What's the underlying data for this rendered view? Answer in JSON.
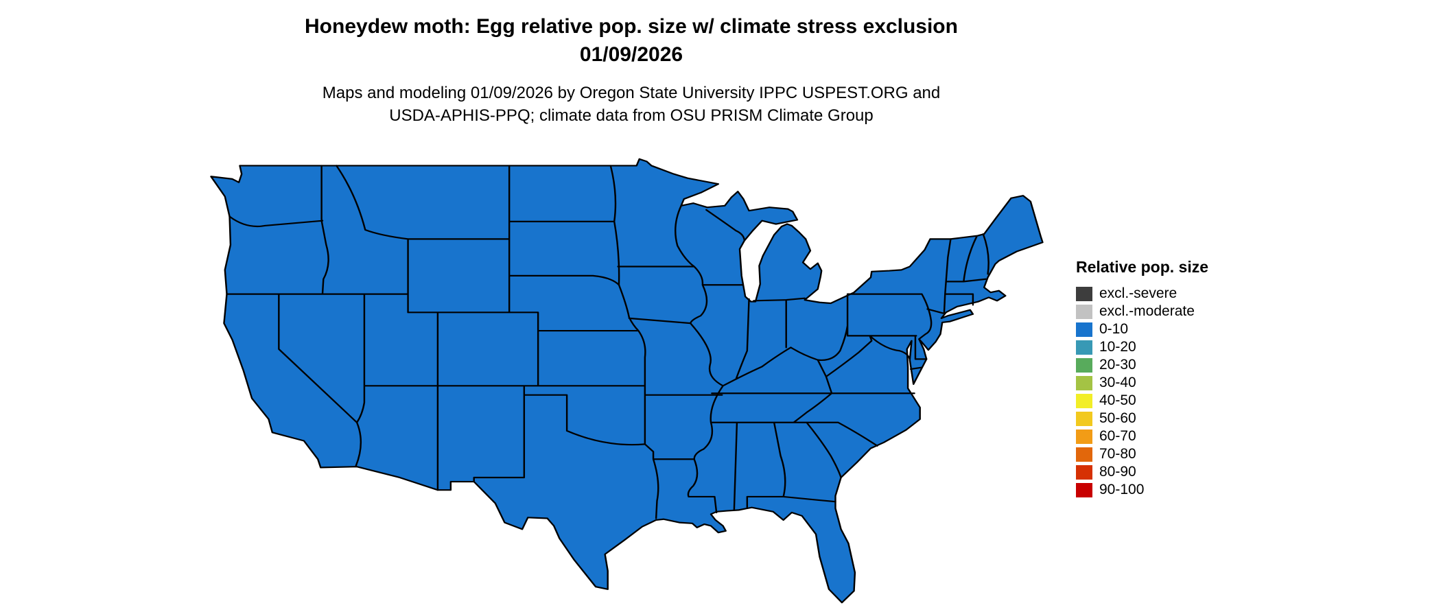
{
  "header": {
    "title_line1": "Honeydew moth: Egg relative pop. size w/ climate stress exclusion",
    "title_line2": "01/09/2026",
    "subtitle_line1": "Maps and modeling 01/09/2026 by Oregon State University IPPC USPEST.ORG and",
    "subtitle_line2": "USDA-APHIS-PPQ; climate data from OSU PRISM Climate Group"
  },
  "map": {
    "uniform_class": "0-10",
    "fill_color": "#1874cd",
    "border_color": "#000000"
  },
  "legend": {
    "title": "Relative pop. size",
    "items": [
      {
        "label": "excl.-severe",
        "color": "#3d3d3d"
      },
      {
        "label": "excl.-moderate",
        "color": "#c2c2c2"
      },
      {
        "label": "0-10",
        "color": "#1874cd"
      },
      {
        "label": "10-20",
        "color": "#3899b5"
      },
      {
        "label": "20-30",
        "color": "#58ab5c"
      },
      {
        "label": "30-40",
        "color": "#a4c344"
      },
      {
        "label": "40-50",
        "color": "#f2ee27"
      },
      {
        "label": "50-60",
        "color": "#f2c91e"
      },
      {
        "label": "60-70",
        "color": "#f29c16"
      },
      {
        "label": "70-80",
        "color": "#e2670b"
      },
      {
        "label": "80-90",
        "color": "#d63103"
      },
      {
        "label": "90-100",
        "color": "#c80000"
      }
    ]
  }
}
